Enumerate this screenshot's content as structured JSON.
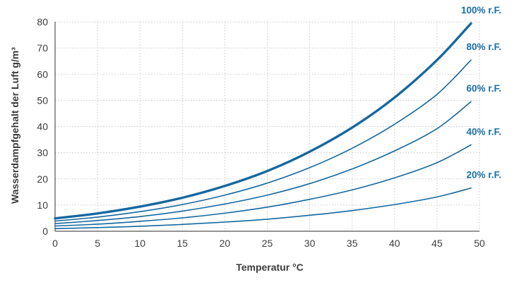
{
  "chart_data": {
    "type": "line",
    "title": "",
    "xlabel": "Temperatur °C",
    "ylabel": "Wasserdampfgehalt der Luft g/m³",
    "xlim": [
      0,
      50
    ],
    "ylim": [
      0,
      80
    ],
    "x_ticks": [
      "0",
      "5",
      "10",
      "15",
      "20",
      "25",
      "30",
      "35",
      "40",
      "45",
      "50"
    ],
    "y_ticks": [
      "0",
      "10",
      "20",
      "30",
      "40",
      "50",
      "60",
      "70",
      "80"
    ],
    "grid": true,
    "line_color": "#1468a0",
    "label_color": "#1a6fa8",
    "x": [
      0,
      5,
      10,
      15,
      20,
      25,
      30,
      35,
      40,
      45,
      49
    ],
    "series": [
      {
        "name": "100% r.F.",
        "values": [
          4.9,
          6.8,
          9.4,
          12.8,
          17.3,
          23.0,
          30.4,
          39.6,
          51.1,
          65.4,
          79.4
        ]
      },
      {
        "name": "80% r.F.",
        "values": [
          3.9,
          5.4,
          7.5,
          10.2,
          13.8,
          18.4,
          24.3,
          31.7,
          40.9,
          52.3,
          65.4
        ]
      },
      {
        "name": "60% r.F.",
        "values": [
          2.9,
          4.1,
          5.6,
          7.7,
          10.4,
          13.8,
          18.2,
          23.8,
          30.7,
          39.2,
          49.5
        ]
      },
      {
        "name": "40% r.F.",
        "values": [
          2.0,
          2.7,
          3.8,
          5.1,
          6.9,
          9.2,
          12.2,
          15.8,
          20.4,
          26.2,
          33.0
        ]
      },
      {
        "name": "20% r.F.",
        "values": [
          1.0,
          1.4,
          1.9,
          2.6,
          3.5,
          4.6,
          6.1,
          7.9,
          10.2,
          13.1,
          16.5
        ]
      }
    ]
  }
}
